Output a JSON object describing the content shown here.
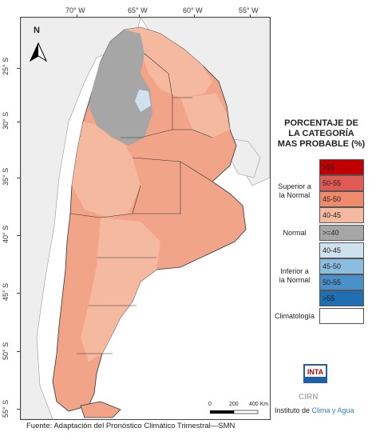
{
  "map": {
    "longitude_labels": [
      "70° W",
      "65° W",
      "60° W",
      "55° W"
    ],
    "latitude_labels": [
      "25° S",
      "30° S",
      "35° S",
      "40° S",
      "45° S",
      "50° S",
      "55° S"
    ],
    "north_arrow_label": "N",
    "scale_bar": {
      "labels": [
        "0",
        "200",
        "400 Km"
      ]
    },
    "colors": {
      "ocean": "#ffffff",
      "neighbors": "#eeeeee",
      "land_base": "#f2a488",
      "superior_45_50": "#ef8a6b",
      "superior_40_45": "#f5b9a0",
      "normal_40": "#a6a6a6",
      "inferior_40_45": "#cfe0ef",
      "boundary": "#333333"
    }
  },
  "legend": {
    "title": [
      "PORCENTAJE DE",
      "LA CATEGORÍA",
      "MAS PROBABLE (%)"
    ],
    "groups": [
      {
        "label": [
          "Superior a",
          "la Normal"
        ]
      },
      {
        "label": [
          "Normal"
        ]
      },
      {
        "label": [
          "Inferior a",
          "la Normal"
        ]
      },
      {
        "label": [
          "Climatología"
        ]
      }
    ],
    "items": [
      {
        "range": ">55",
        "color": "#c00000"
      },
      {
        "range": "50-55",
        "color": "#e05a56"
      },
      {
        "range": "45-50",
        "color": "#ef8a6b"
      },
      {
        "range": "40-45",
        "color": "#f5b9a0"
      },
      {
        "range": ">=40",
        "color": "#a6a6a6"
      },
      {
        "range": "40-45",
        "color": "#cfe0ef"
      },
      {
        "range": "45-50",
        "color": "#8bbde0"
      },
      {
        "range": "50-55",
        "color": "#4a90c8"
      },
      {
        "range": ">55",
        "color": "#1f6fb2"
      },
      {
        "range": "",
        "color": "#ffffff"
      }
    ]
  },
  "logo": {
    "brand": "INTA",
    "sub": "CIRN",
    "institute_prefix": "Instituto de ",
    "institute_accent": "Clima y Agua"
  },
  "source": "Fuente: Adaptación del Pronóstico Climático Trimestral—SMN"
}
